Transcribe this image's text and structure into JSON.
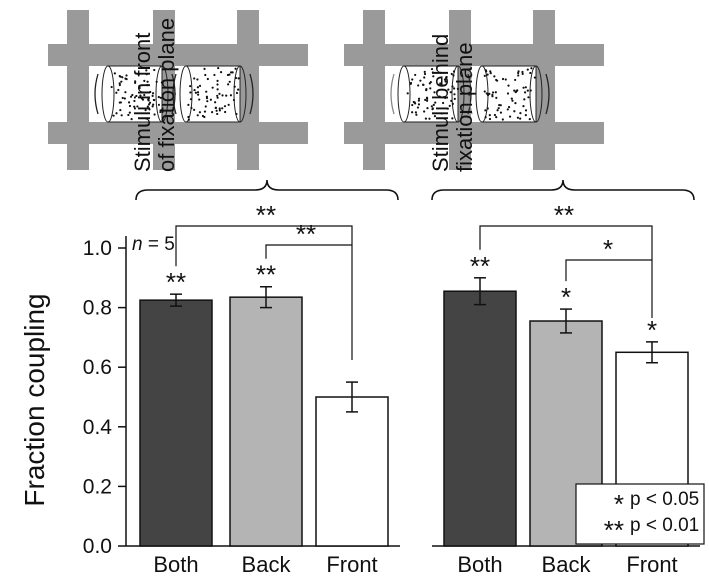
{
  "chart_data": {
    "type": "bar",
    "ylabel": "Fraction coupling",
    "ylim": [
      0.0,
      1.0
    ],
    "yticks": [
      "0.0",
      "0.2",
      "0.4",
      "0.6",
      "0.8",
      "1.0"
    ],
    "categories": [
      "Both",
      "Back",
      "Front"
    ],
    "n_label": "= 5",
    "n_symbol": "n",
    "bar_colors": [
      "#444444",
      "#b4b4b4",
      "#ffffff"
    ],
    "groups": [
      {
        "label": "Stimuli in front\nof fixation plane",
        "label_lines": [
          "Stimuli in front",
          "of fixation plane"
        ],
        "values": [
          0.825,
          0.835,
          0.5
        ],
        "errors": [
          0.02,
          0.035,
          0.05
        ],
        "stars": [
          "**",
          "**",
          ""
        ],
        "brackets": [
          {
            "from": "Both",
            "to": "Front",
            "label": "**"
          },
          {
            "from": "Back",
            "to": "Front",
            "label": "**"
          }
        ]
      },
      {
        "label": "Stimuli behind\nfixation plane",
        "label_lines": [
          "Stimuli behind",
          "fixation plane"
        ],
        "values": [
          0.855,
          0.755,
          0.65
        ],
        "errors": [
          0.045,
          0.04,
          0.035
        ],
        "stars": [
          "**",
          "*",
          "*"
        ],
        "brackets": [
          {
            "from": "Both",
            "to": "Front",
            "label": "**"
          },
          {
            "from": "Back",
            "to": "Front",
            "label": "*"
          }
        ]
      }
    ],
    "legend": [
      {
        "symbol": "*",
        "text": "p < 0.05"
      },
      {
        "symbol": "**",
        "text": "p < 0.01"
      }
    ]
  }
}
